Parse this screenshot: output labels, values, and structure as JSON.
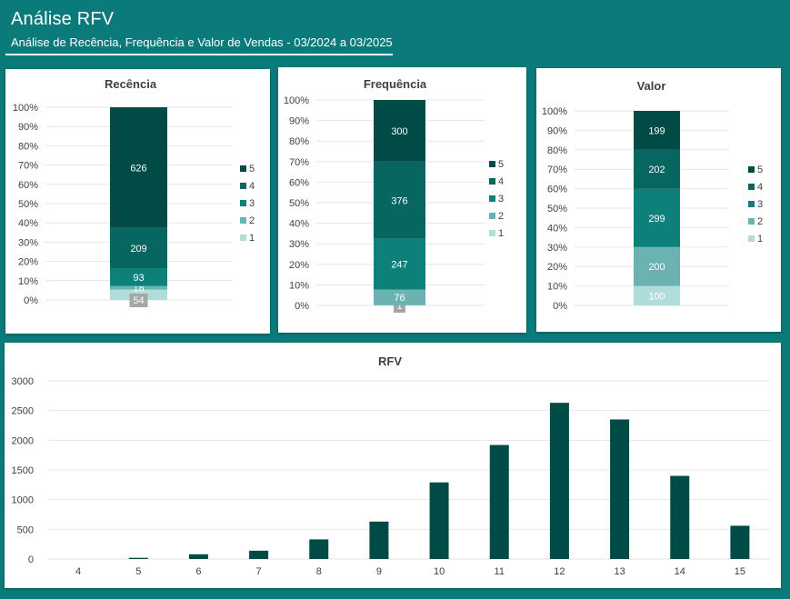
{
  "header": {
    "title": "Análise RFV",
    "subtitle": "Análise de Recência, Frequência e Valor de Vendas - 03/2024 a 03/2025"
  },
  "colors": {
    "background": "#0a7b7a",
    "s5": "#014b46",
    "s4": "#07665f",
    "s3": "#0d8179",
    "s2": "#6bb3b3",
    "s1": "#b0dcdb",
    "rfv_bar": "#014b46",
    "small_label_bg": "#a6a6a6"
  },
  "chart_data": [
    {
      "id": "recencia",
      "type": "bar",
      "stacked": "percent",
      "title": "Recência",
      "ylim": [
        0,
        100
      ],
      "yticks": [
        "0%",
        "10%",
        "20%",
        "30%",
        "40%",
        "50%",
        "60%",
        "70%",
        "80%",
        "90%",
        "100%"
      ],
      "legend": [
        "5",
        "4",
        "3",
        "2",
        "1"
      ],
      "legend_position": "right",
      "series": [
        {
          "name": "1",
          "value": 54
        },
        {
          "name": "2",
          "value": 18
        },
        {
          "name": "3",
          "value": 93
        },
        {
          "name": "4",
          "value": 209
        },
        {
          "name": "5",
          "value": 626
        }
      ]
    },
    {
      "id": "frequencia",
      "type": "bar",
      "stacked": "percent",
      "title": "Frequência",
      "ylim": [
        0,
        100
      ],
      "yticks": [
        "0%",
        "10%",
        "20%",
        "30%",
        "40%",
        "50%",
        "60%",
        "70%",
        "80%",
        "90%",
        "100%"
      ],
      "legend": [
        "5",
        "4",
        "3",
        "2",
        "1"
      ],
      "legend_position": "right",
      "series": [
        {
          "name": "1",
          "value": 1
        },
        {
          "name": "2",
          "value": 76
        },
        {
          "name": "3",
          "value": 247
        },
        {
          "name": "4",
          "value": 376
        },
        {
          "name": "5",
          "value": 300
        }
      ]
    },
    {
      "id": "valor",
      "type": "bar",
      "stacked": "percent",
      "title": "Valor",
      "ylim": [
        0,
        100
      ],
      "yticks": [
        "0%",
        "10%",
        "20%",
        "30%",
        "40%",
        "50%",
        "60%",
        "70%",
        "80%",
        "90%",
        "100%"
      ],
      "legend": [
        "5",
        "4",
        "3",
        "2",
        "1"
      ],
      "legend_position": "right",
      "series": [
        {
          "name": "1",
          "value": 100
        },
        {
          "name": "2",
          "value": 200
        },
        {
          "name": "3",
          "value": 299
        },
        {
          "name": "4",
          "value": 202
        },
        {
          "name": "5",
          "value": 199
        }
      ]
    },
    {
      "id": "rfv",
      "type": "bar",
      "title": "RFV",
      "categories": [
        "4",
        "5",
        "6",
        "7",
        "8",
        "9",
        "10",
        "11",
        "12",
        "13",
        "14",
        "15"
      ],
      "values": [
        0,
        20,
        80,
        140,
        330,
        630,
        1290,
        1920,
        2630,
        2350,
        1400,
        560
      ],
      "ylim": [
        0,
        3000
      ],
      "yticks": [
        "0",
        "500",
        "1000",
        "1500",
        "2000",
        "2500",
        "3000"
      ],
      "grid": true
    }
  ]
}
